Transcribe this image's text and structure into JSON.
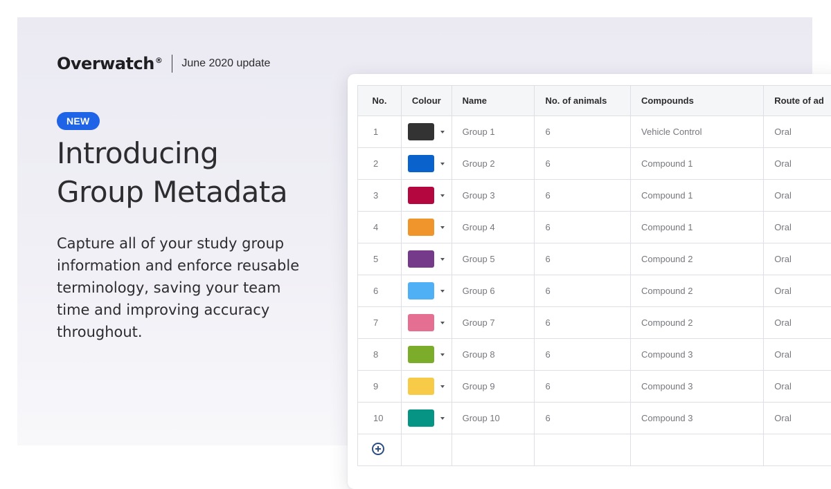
{
  "brand": {
    "logo": "Overwatch",
    "registered": "®",
    "update": "June 2020 update"
  },
  "hero": {
    "badge": "NEW",
    "headline_line1": "Introducing",
    "headline_line2": "Group Metadata",
    "description": "Capture all of your study group information and enforce reusable terminology, saving your team time and improving accuracy throughout."
  },
  "table": {
    "headers": {
      "no": "No.",
      "colour": "Colour",
      "name": "Name",
      "animals": "No. of animals",
      "compounds": "Compounds",
      "route": "Route of ad"
    },
    "rows": [
      {
        "no": "1",
        "color": "#333333",
        "name": "Group 1",
        "animals": "6",
        "compound": "Vehicle Control",
        "route": "Oral"
      },
      {
        "no": "2",
        "color": "#0a63cc",
        "name": "Group 2",
        "animals": "6",
        "compound": "Compound 1",
        "route": "Oral"
      },
      {
        "no": "3",
        "color": "#b5073f",
        "name": "Group 3",
        "animals": "6",
        "compound": "Compound 1",
        "route": "Oral"
      },
      {
        "no": "4",
        "color": "#f0952b",
        "name": "Group 4",
        "animals": "6",
        "compound": "Compound 1",
        "route": "Oral"
      },
      {
        "no": "5",
        "color": "#763a8a",
        "name": "Group 5",
        "animals": "6",
        "compound": "Compound 2",
        "route": "Oral"
      },
      {
        "no": "6",
        "color": "#4fb0f5",
        "name": "Group 6",
        "animals": "6",
        "compound": "Compound 2",
        "route": "Oral"
      },
      {
        "no": "7",
        "color": "#e56e93",
        "name": "Group 7",
        "animals": "6",
        "compound": "Compound 2",
        "route": "Oral"
      },
      {
        "no": "8",
        "color": "#7bad2b",
        "name": "Group 8",
        "animals": "6",
        "compound": "Compound 3",
        "route": "Oral"
      },
      {
        "no": "9",
        "color": "#f7cb48",
        "name": "Group 9",
        "animals": "6",
        "compound": "Compound 3",
        "route": "Oral"
      },
      {
        "no": "10",
        "color": "#069584",
        "name": "Group 10",
        "animals": "6",
        "compound": "Compound 3",
        "route": "Oral"
      }
    ],
    "add_icon": "plus-circle-icon"
  },
  "colors": {
    "badge": "#1f63e6",
    "panel": "#ebeaf3",
    "add_icon": "#2c4e84"
  }
}
